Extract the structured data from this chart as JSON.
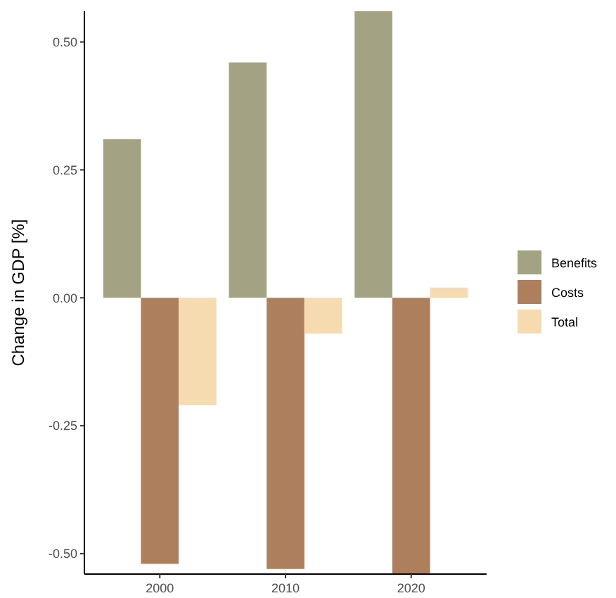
{
  "chart_data": {
    "type": "bar",
    "ylabel": "Change in GDP [%]",
    "categories": [
      "2000",
      "2010",
      "2020"
    ],
    "series": [
      {
        "name": "Benefits",
        "color": "#a3a383",
        "values": [
          0.31,
          0.46,
          0.56
        ]
      },
      {
        "name": "Costs",
        "color": "#ae7f5c",
        "values": [
          -0.52,
          -0.53,
          -0.54
        ]
      },
      {
        "name": "Total",
        "color": "#f7dbb0",
        "values": [
          -0.21,
          -0.07,
          0.02
        ]
      }
    ],
    "ylim": [
      -0.54,
      0.56
    ],
    "yticks": [
      {
        "value": -0.5,
        "label": "-0.50"
      },
      {
        "value": -0.25,
        "label": "-0.25"
      },
      {
        "value": 0,
        "label": "0.00"
      },
      {
        "value": 0.25,
        "label": "0.25"
      },
      {
        "value": 0.5,
        "label": "0.50"
      }
    ],
    "grid": false,
    "legend": "right"
  }
}
